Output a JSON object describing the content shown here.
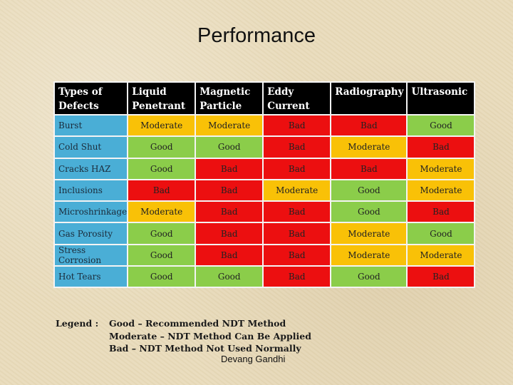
{
  "title": "Performance",
  "table": {
    "columns": [
      "Types of Defects",
      "Liquid Penetrant",
      "Magnetic Particle",
      "Eddy Current",
      "Radiography",
      "Ultrasonic"
    ],
    "rows": [
      {
        "defect": "Burst",
        "values": [
          "Moderate",
          "Moderate",
          "Bad",
          "Bad",
          "Good"
        ]
      },
      {
        "defect": "Cold Shut",
        "values": [
          "Good",
          "Good",
          "Bad",
          "Moderate",
          "Bad"
        ]
      },
      {
        "defect": "Cracks HAZ",
        "values": [
          "Good",
          "Bad",
          "Bad",
          "Bad",
          "Moderate"
        ]
      },
      {
        "defect": "Inclusions",
        "values": [
          "Bad",
          "Bad",
          "Moderate",
          "Good",
          "Moderate"
        ]
      },
      {
        "defect": "Microshrinkage",
        "values": [
          "Moderate",
          "Bad",
          "Bad",
          "Good",
          "Bad"
        ]
      },
      {
        "defect": "Gas Porosity",
        "values": [
          "Good",
          "Bad",
          "Bad",
          "Moderate",
          "Good"
        ]
      },
      {
        "defect": "Stress Corrosion",
        "values": [
          "Good",
          "Bad",
          "Bad",
          "Moderate",
          "Moderate"
        ]
      },
      {
        "defect": "Hot Tears",
        "values": [
          "Good",
          "Good",
          "Bad",
          "Good",
          "Bad"
        ]
      }
    ]
  },
  "colors": {
    "good": "#8bcd4a",
    "moderate": "#f9c107",
    "bad": "#ec0f10",
    "header": "#000000",
    "defect_cell": "#4aaed6"
  },
  "legend": {
    "label": "Legend :",
    "lines": [
      "Good – Recommended NDT Method",
      "Moderate – NDT Method Can Be Applied",
      "Bad – NDT Method Not Used Normally"
    ]
  },
  "author": "Devang Gandhi"
}
